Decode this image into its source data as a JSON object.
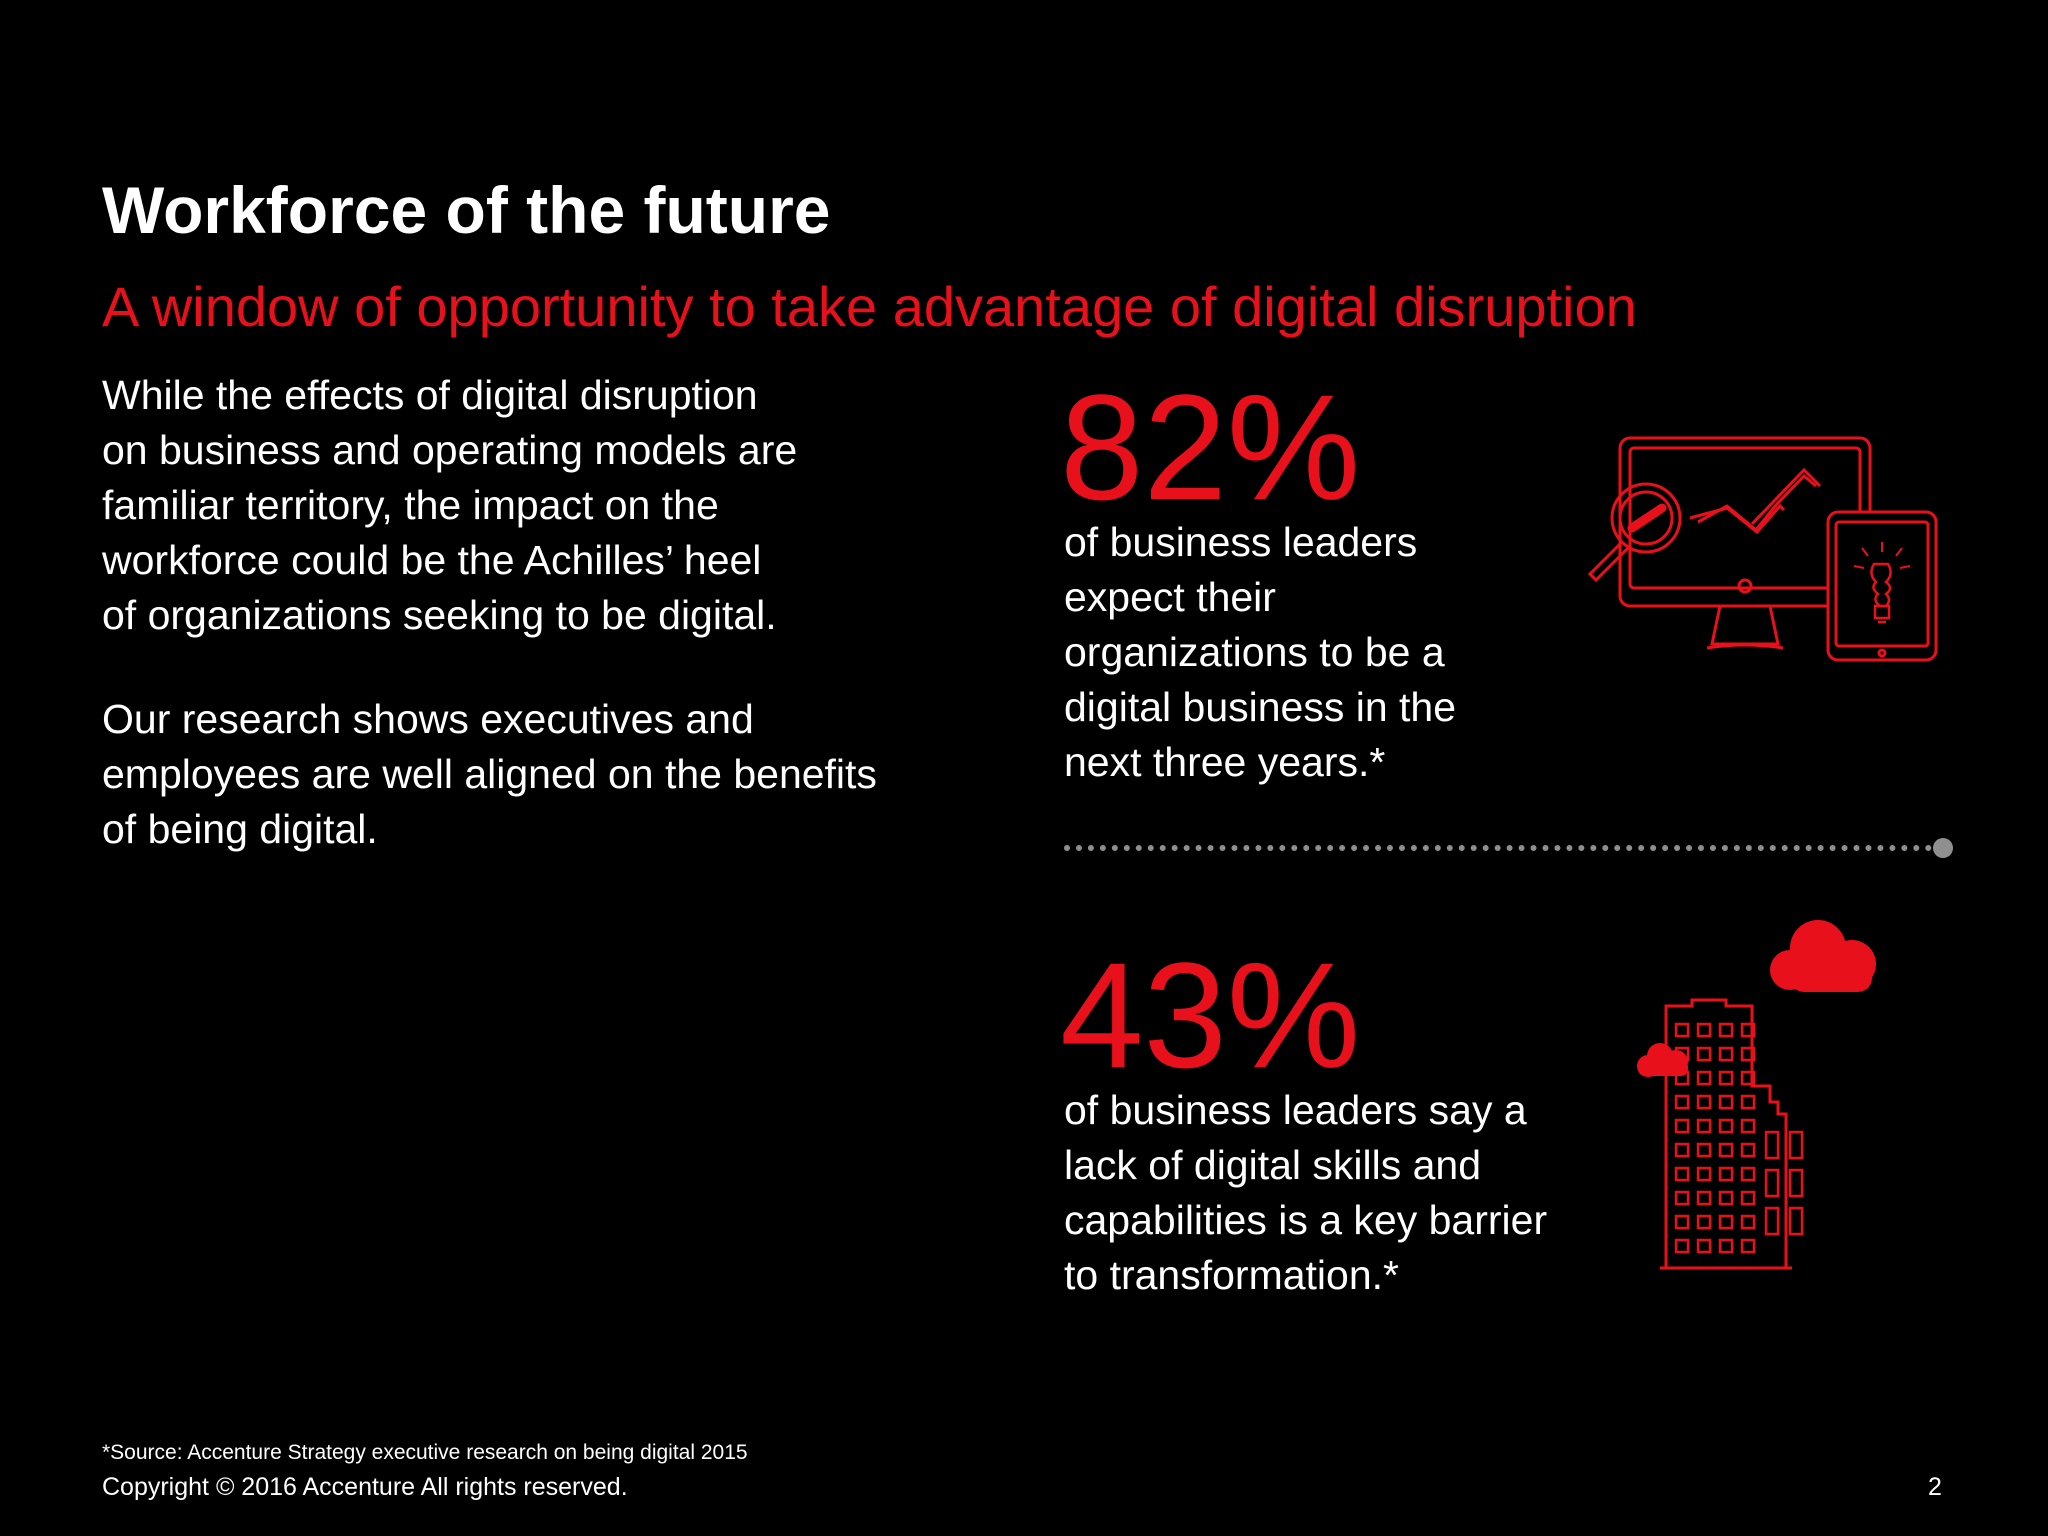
{
  "slide": {
    "title": "Workforce of the future",
    "subtitle": "A window of opportunity to take advantage of digital disruption"
  },
  "intro": {
    "paragraph1": [
      "While the effects of digital disruption",
      "on business and operating models are",
      "familiar territory, the impact on the",
      "workforce could be the Achilles’ heel",
      "of organizations seeking to be digital."
    ],
    "paragraph2": [
      "Our research shows executives and",
      "employees are well aligned on the benefits",
      "of being digital."
    ]
  },
  "stats": [
    {
      "value": "82%",
      "caption": [
        "of business leaders",
        "expect their",
        "organizations to be a",
        "digital business in the",
        "next three years.*"
      ],
      "icon": "monitor-analytics-tablet-icon"
    },
    {
      "value": "43%",
      "caption": [
        "of business leaders say a",
        "lack of digital skills and",
        "capabilities is a key barrier",
        "to transformation.*"
      ],
      "icon": "building-cloud-icon"
    }
  ],
  "footer": {
    "source": "*Source: Accenture Strategy executive research on being digital 2015",
    "copyright": "Copyright © 2016 Accenture  All rights reserved.",
    "page_number": "2"
  },
  "colors": {
    "background": "#000000",
    "accent": "#e8101a",
    "text": "#ffffff",
    "divider": "#8f8f8f"
  }
}
